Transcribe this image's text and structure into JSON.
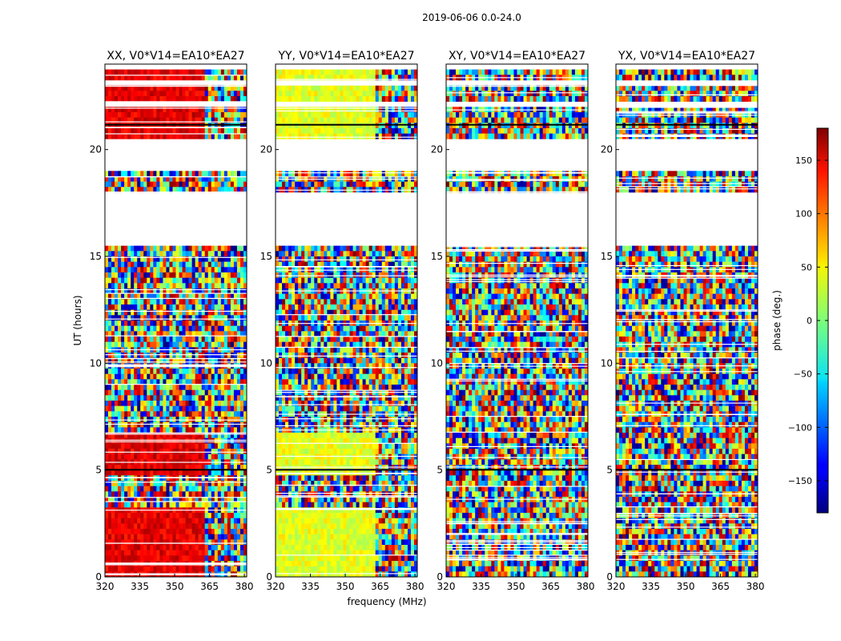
{
  "figure": {
    "suptitle": "2019-06-06 0.0-24.0"
  },
  "chart_data": {
    "type": "heatmap",
    "suptitle": "2019-06-06 0.0-24.0",
    "xlabel": "frequency (MHz)",
    "ylabel": "UT (hours)",
    "xlim": [
      320,
      381
    ],
    "ylim": [
      0,
      24
    ],
    "xticks": [
      320,
      335,
      350,
      365,
      380
    ],
    "yticks": [
      0,
      5,
      10,
      15,
      20
    ],
    "panels": [
      {
        "title": "XX, V0*V14=EA10*EA27",
        "coherent": "red"
      },
      {
        "title": "YY, V0*V14=EA10*EA27",
        "coherent": "yellow-green"
      },
      {
        "title": "XY, V0*V14=EA10*EA27",
        "coherent": "noise"
      },
      {
        "title": "YX, V0*V14=EA10*EA27",
        "coherent": "noise"
      }
    ],
    "flagged_ut_ranges": [
      [
        15.55,
        17.9
      ],
      [
        18.9,
        20.5
      ],
      [
        22.0,
        22.15
      ],
      [
        23.05,
        23.25
      ]
    ],
    "colorbar": {
      "label": "phase (deg.)",
      "range": [
        -180,
        180
      ],
      "ticks": [
        150,
        100,
        50,
        0,
        -50,
        -100,
        -150
      ],
      "tick_labels": [
        "150",
        "100",
        "50",
        "0",
        "−50",
        "−100",
        "−150"
      ],
      "colormap": "jet"
    }
  }
}
